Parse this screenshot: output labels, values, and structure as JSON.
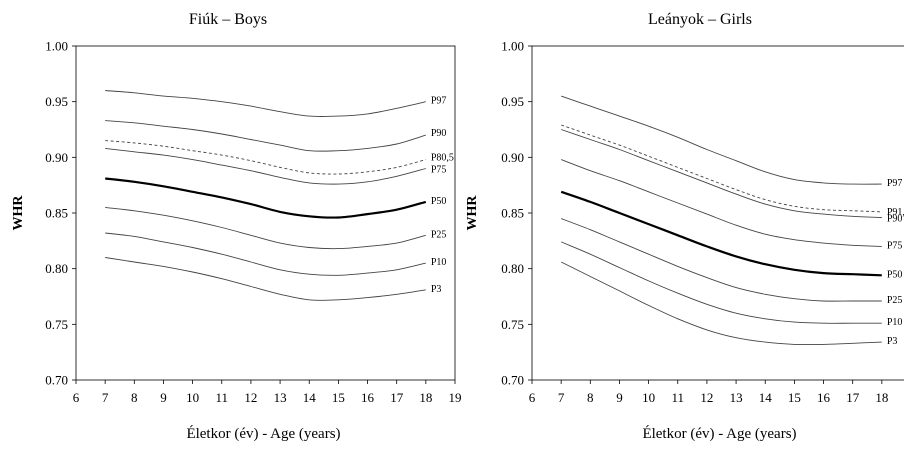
{
  "chart_data": [
    {
      "type": "line",
      "title": "Fiúk – Boys",
      "xlabel": "Életkor (év) - Age (years)",
      "ylabel": "WHR",
      "xlim": [
        6,
        19
      ],
      "ylim": [
        0.7,
        1.0
      ],
      "xticks": [
        "6",
        "7",
        "8",
        "9",
        "10",
        "11",
        "12",
        "13",
        "14",
        "15",
        "16",
        "17",
        "18",
        "19"
      ],
      "yticks": [
        "0.70",
        "0.75",
        "0.80",
        "0.85",
        "0.90",
        "0.95",
        "1.00"
      ],
      "grid": false,
      "legend": "none",
      "x": [
        7,
        8,
        9,
        10,
        11,
        12,
        13,
        14,
        15,
        16,
        17,
        18
      ],
      "series": [
        {
          "name": "P97",
          "style": "thin",
          "values": [
            0.96,
            0.958,
            0.955,
            0.953,
            0.95,
            0.946,
            0.941,
            0.937,
            0.937,
            0.939,
            0.944,
            0.95
          ]
        },
        {
          "name": "P90",
          "style": "thin",
          "values": [
            0.933,
            0.931,
            0.928,
            0.925,
            0.921,
            0.916,
            0.911,
            0.906,
            0.906,
            0.908,
            0.912,
            0.92
          ]
        },
        {
          "name": "P80,5",
          "style": "dashed",
          "values": [
            0.915,
            0.913,
            0.91,
            0.906,
            0.902,
            0.897,
            0.891,
            0.886,
            0.885,
            0.887,
            0.891,
            0.898
          ]
        },
        {
          "name": "P75",
          "style": "thin",
          "values": [
            0.908,
            0.905,
            0.902,
            0.898,
            0.893,
            0.888,
            0.882,
            0.877,
            0.876,
            0.878,
            0.883,
            0.89
          ]
        },
        {
          "name": "P50",
          "style": "bold",
          "values": [
            0.881,
            0.878,
            0.874,
            0.869,
            0.864,
            0.858,
            0.851,
            0.847,
            0.846,
            0.849,
            0.853,
            0.86
          ]
        },
        {
          "name": "P25",
          "style": "thin",
          "values": [
            0.855,
            0.852,
            0.848,
            0.843,
            0.837,
            0.83,
            0.823,
            0.819,
            0.818,
            0.82,
            0.823,
            0.83
          ]
        },
        {
          "name": "P10",
          "style": "thin",
          "values": [
            0.832,
            0.829,
            0.824,
            0.819,
            0.813,
            0.806,
            0.799,
            0.795,
            0.794,
            0.796,
            0.799,
            0.805
          ]
        },
        {
          "name": "P3",
          "style": "thin",
          "values": [
            0.81,
            0.806,
            0.802,
            0.797,
            0.791,
            0.784,
            0.777,
            0.772,
            0.772,
            0.774,
            0.777,
            0.781
          ]
        }
      ]
    },
    {
      "type": "line",
      "title": "Leányok – Girls",
      "xlabel": "Életkor (év) - Age (years)",
      "ylabel": "WHR",
      "xlim": [
        6,
        19
      ],
      "ylim": [
        0.7,
        1.0
      ],
      "xticks": [
        "6",
        "7",
        "8",
        "9",
        "10",
        "11",
        "12",
        "13",
        "14",
        "15",
        "16",
        "17",
        "18",
        "19"
      ],
      "yticks": [
        "0.70",
        "0.75",
        "0.80",
        "0.85",
        "0.90",
        "0.95",
        "1.00"
      ],
      "grid": false,
      "legend": "none",
      "x": [
        7,
        8,
        9,
        10,
        11,
        12,
        13,
        14,
        15,
        16,
        17,
        18
      ],
      "series": [
        {
          "name": "P97",
          "style": "thin",
          "values": [
            0.955,
            0.946,
            0.937,
            0.928,
            0.918,
            0.907,
            0.897,
            0.887,
            0.88,
            0.877,
            0.876,
            0.876
          ]
        },
        {
          "name": "P91,6",
          "style": "dashed",
          "values": [
            0.929,
            0.92,
            0.911,
            0.901,
            0.891,
            0.881,
            0.871,
            0.862,
            0.856,
            0.853,
            0.852,
            0.851
          ]
        },
        {
          "name": "P90",
          "style": "thin",
          "values": [
            0.925,
            0.916,
            0.907,
            0.897,
            0.887,
            0.877,
            0.867,
            0.858,
            0.852,
            0.849,
            0.847,
            0.846
          ]
        },
        {
          "name": "P75",
          "style": "thin",
          "values": [
            0.898,
            0.888,
            0.879,
            0.869,
            0.859,
            0.849,
            0.839,
            0.831,
            0.826,
            0.823,
            0.821,
            0.82
          ]
        },
        {
          "name": "P50",
          "style": "bold",
          "values": [
            0.869,
            0.86,
            0.85,
            0.84,
            0.83,
            0.82,
            0.811,
            0.804,
            0.799,
            0.796,
            0.795,
            0.794
          ]
        },
        {
          "name": "P25",
          "style": "thin",
          "values": [
            0.845,
            0.835,
            0.824,
            0.813,
            0.802,
            0.792,
            0.783,
            0.777,
            0.773,
            0.771,
            0.771,
            0.771
          ]
        },
        {
          "name": "P10",
          "style": "thin",
          "values": [
            0.824,
            0.813,
            0.801,
            0.789,
            0.778,
            0.768,
            0.76,
            0.755,
            0.752,
            0.751,
            0.751,
            0.751
          ]
        },
        {
          "name": "P3",
          "style": "thin",
          "values": [
            0.806,
            0.793,
            0.78,
            0.767,
            0.755,
            0.745,
            0.738,
            0.734,
            0.732,
            0.732,
            0.733,
            0.734
          ]
        }
      ]
    }
  ]
}
